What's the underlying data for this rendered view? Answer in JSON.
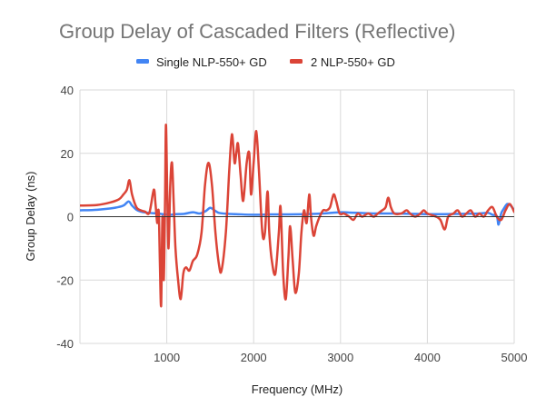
{
  "chart_data": {
    "type": "line",
    "title": "Group Delay of Cascaded Filters (Reflective)",
    "xlabel": "Frequency (MHz)",
    "ylabel": "Group Delay (ns)",
    "xlim": [
      0,
      5000
    ],
    "ylim": [
      -40,
      40
    ],
    "xticks": [
      1000,
      2000,
      3000,
      4000,
      5000
    ],
    "yticks": [
      -40,
      -20,
      0,
      20,
      40
    ],
    "grid": true,
    "legend_position": "top",
    "series": [
      {
        "name": "Single NLP-550+ GD",
        "color": "#4285F4",
        "points": [
          [
            0,
            2
          ],
          [
            200,
            2.2
          ],
          [
            400,
            2.8
          ],
          [
            500,
            3.5
          ],
          [
            560,
            4.8
          ],
          [
            600,
            3.5
          ],
          [
            650,
            2.2
          ],
          [
            700,
            1.6
          ],
          [
            800,
            1.2
          ],
          [
            900,
            1.0
          ],
          [
            950,
            0.8
          ],
          [
            1000,
            0.7
          ],
          [
            1050,
            0.6
          ],
          [
            1100,
            0.8
          ],
          [
            1200,
            0.9
          ],
          [
            1300,
            1.4
          ],
          [
            1380,
            1.0
          ],
          [
            1450,
            1.8
          ],
          [
            1500,
            2.8
          ],
          [
            1550,
            2.0
          ],
          [
            1600,
            1.2
          ],
          [
            1700,
            0.9
          ],
          [
            1800,
            0.8
          ],
          [
            2000,
            0.6
          ],
          [
            2200,
            0.7
          ],
          [
            2400,
            0.7
          ],
          [
            2600,
            0.8
          ],
          [
            2800,
            1.0
          ],
          [
            3000,
            1.4
          ],
          [
            3100,
            1.3
          ],
          [
            3200,
            1.2
          ],
          [
            3400,
            1.0
          ],
          [
            3600,
            1.0
          ],
          [
            3800,
            0.9
          ],
          [
            4000,
            0.8
          ],
          [
            4200,
            0.8
          ],
          [
            4400,
            0.9
          ],
          [
            4600,
            1.0
          ],
          [
            4700,
            1.2
          ],
          [
            4750,
            0.6
          ],
          [
            4800,
            0.2
          ],
          [
            4820,
            -2.5
          ],
          [
            4850,
            1.0
          ],
          [
            4880,
            2.5
          ],
          [
            4920,
            4.0
          ],
          [
            4960,
            3.5
          ],
          [
            5000,
            2.0
          ]
        ]
      },
      {
        "name": "2 NLP-550+ GD",
        "color": "#DB4437",
        "points": [
          [
            0,
            3.5
          ],
          [
            200,
            3.7
          ],
          [
            350,
            4.5
          ],
          [
            450,
            5.5
          ],
          [
            500,
            7
          ],
          [
            540,
            8.5
          ],
          [
            570,
            11.5
          ],
          [
            600,
            7
          ],
          [
            650,
            3
          ],
          [
            700,
            2
          ],
          [
            750,
            1.6
          ],
          [
            800,
            1.3
          ],
          [
            850,
            8.5
          ],
          [
            870,
            4
          ],
          [
            890,
            -2
          ],
          [
            900,
            2
          ],
          [
            910,
            0
          ],
          [
            920,
            -14
          ],
          [
            935,
            -28
          ],
          [
            950,
            0
          ],
          [
            965,
            -20
          ],
          [
            980,
            5
          ],
          [
            990,
            29
          ],
          [
            1005,
            8
          ],
          [
            1020,
            -10
          ],
          [
            1040,
            10
          ],
          [
            1060,
            17
          ],
          [
            1080,
            4
          ],
          [
            1100,
            -10
          ],
          [
            1130,
            -20
          ],
          [
            1160,
            -26
          ],
          [
            1190,
            -18
          ],
          [
            1220,
            -16
          ],
          [
            1260,
            -17
          ],
          [
            1300,
            -14
          ],
          [
            1350,
            -12
          ],
          [
            1400,
            -5
          ],
          [
            1440,
            10
          ],
          [
            1480,
            17
          ],
          [
            1520,
            10
          ],
          [
            1560,
            -5
          ],
          [
            1600,
            -15
          ],
          [
            1630,
            -17
          ],
          [
            1680,
            -5
          ],
          [
            1720,
            15
          ],
          [
            1750,
            26
          ],
          [
            1780,
            17
          ],
          [
            1800,
            20
          ],
          [
            1820,
            23
          ],
          [
            1850,
            13
          ],
          [
            1880,
            5
          ],
          [
            1920,
            17
          ],
          [
            1950,
            20
          ],
          [
            1970,
            7
          ],
          [
            2000,
            17
          ],
          [
            2030,
            27
          ],
          [
            2060,
            15
          ],
          [
            2100,
            -5
          ],
          [
            2130,
            -5
          ],
          [
            2160,
            8
          ],
          [
            2180,
            -5
          ],
          [
            2210,
            -14
          ],
          [
            2250,
            -18
          ],
          [
            2290,
            -5
          ],
          [
            2310,
            3
          ],
          [
            2340,
            -18
          ],
          [
            2370,
            -26
          ],
          [
            2400,
            -13
          ],
          [
            2420,
            -3
          ],
          [
            2450,
            -14
          ],
          [
            2480,
            -24
          ],
          [
            2520,
            -18
          ],
          [
            2550,
            -5
          ],
          [
            2580,
            2
          ],
          [
            2610,
            -2
          ],
          [
            2640,
            7
          ],
          [
            2660,
            0
          ],
          [
            2690,
            -6
          ],
          [
            2720,
            -3
          ],
          [
            2760,
            0
          ],
          [
            2800,
            2
          ],
          [
            2840,
            2
          ],
          [
            2880,
            3
          ],
          [
            2920,
            7
          ],
          [
            2950,
            5
          ],
          [
            2990,
            1
          ],
          [
            3040,
            1
          ],
          [
            3100,
            0
          ],
          [
            3150,
            -1
          ],
          [
            3200,
            1
          ],
          [
            3250,
            0
          ],
          [
            3320,
            1
          ],
          [
            3380,
            0
          ],
          [
            3430,
            1
          ],
          [
            3480,
            2
          ],
          [
            3520,
            3
          ],
          [
            3550,
            6
          ],
          [
            3580,
            3
          ],
          [
            3620,
            1
          ],
          [
            3700,
            1
          ],
          [
            3760,
            2
          ],
          [
            3800,
            1
          ],
          [
            3860,
            0
          ],
          [
            3920,
            1
          ],
          [
            3960,
            2
          ],
          [
            4000,
            1
          ],
          [
            4100,
            0
          ],
          [
            4150,
            -1
          ],
          [
            4200,
            -4
          ],
          [
            4240,
            0
          ],
          [
            4300,
            1
          ],
          [
            4350,
            2
          ],
          [
            4400,
            0
          ],
          [
            4450,
            1
          ],
          [
            4500,
            2
          ],
          [
            4550,
            0
          ],
          [
            4600,
            1
          ],
          [
            4650,
            0
          ],
          [
            4700,
            2
          ],
          [
            4750,
            3
          ],
          [
            4800,
            0
          ],
          [
            4850,
            -1
          ],
          [
            4900,
            2
          ],
          [
            4950,
            4
          ],
          [
            5000,
            1.5
          ]
        ]
      }
    ]
  }
}
